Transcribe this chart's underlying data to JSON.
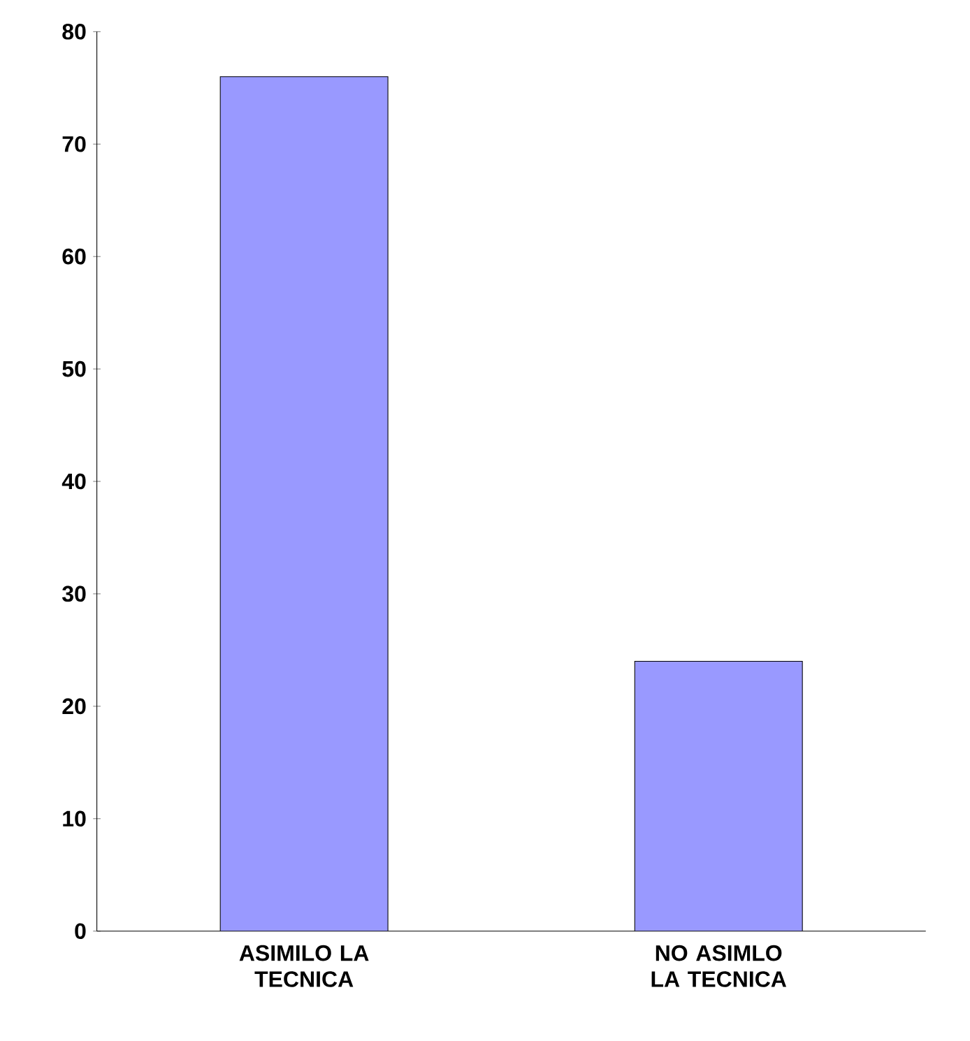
{
  "chart_data": {
    "type": "bar",
    "categories": [
      "ASIMILO LA TECNICA",
      "NO ASIMLO LA TECNICA"
    ],
    "values": [
      76,
      24
    ],
    "color": "#9999ff",
    "ylim": [
      0,
      80
    ],
    "yticks": [
      0,
      10,
      20,
      30,
      40,
      50,
      60,
      70,
      80
    ],
    "grid": false
  }
}
